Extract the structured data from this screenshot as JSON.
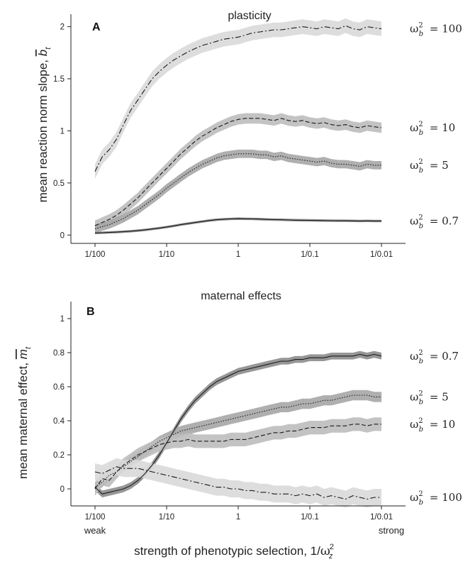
{
  "figure": {
    "x_ticks": [
      "1/100",
      "1/10",
      "1",
      "1/0.1",
      "1/0.01"
    ],
    "x_end_labels": {
      "left": "weak",
      "right": "strong"
    },
    "x_label": {
      "prefix": "strength of phenotypic selection,  1/",
      "sym": "ω",
      "sup": "2",
      "sub": "z"
    }
  },
  "chart_data": [
    {
      "panel": "A",
      "title": "plasticity",
      "type": "line",
      "x_scale": "log",
      "x_ticks": [
        "1/100",
        "1/10",
        "1",
        "1/0.1",
        "1/0.01"
      ],
      "xlim": [
        0.01,
        100
      ],
      "ylim": [
        -0.08,
        2.12
      ],
      "y_ticks": [
        "0",
        "0.5",
        "1",
        "1.5",
        "2"
      ],
      "ylabel": {
        "prefix": "mean reaction norm slope, ",
        "sym": "b",
        "sub": "t"
      },
      "series_label_prefix": {
        "sym": "ω",
        "sup": "2",
        "sub": "b"
      },
      "series": [
        {
          "name": "100",
          "label": "= 100",
          "linestyle": "dashdot",
          "band_color": "#d9d9d9",
          "x": [
            0.01,
            0.0126,
            0.0158,
            0.02,
            0.025,
            0.0316,
            0.04,
            0.05,
            0.063,
            0.079,
            0.1,
            0.126,
            0.158,
            0.2,
            0.25,
            0.316,
            0.4,
            0.5,
            0.63,
            0.79,
            1,
            1.26,
            1.58,
            2,
            2.5,
            3.16,
            4,
            5,
            6.3,
            7.9,
            10,
            12.6,
            15.8,
            20,
            25,
            31.6,
            40,
            50,
            63,
            79,
            100
          ],
          "y": [
            0.61,
            0.75,
            0.82,
            0.92,
            1.06,
            1.2,
            1.3,
            1.4,
            1.5,
            1.57,
            1.63,
            1.68,
            1.72,
            1.76,
            1.79,
            1.82,
            1.84,
            1.86,
            1.88,
            1.89,
            1.9,
            1.92,
            1.94,
            1.95,
            1.96,
            1.97,
            1.97,
            1.98,
            1.99,
            2.0,
            1.99,
            1.98,
            2.0,
            1.99,
            1.98,
            2.01,
            1.98,
            1.97,
            2.0,
            1.99,
            1.98
          ],
          "band": 0.07
        },
        {
          "name": "10",
          "label": "= 10",
          "linestyle": "dashed",
          "band_color": "#bdbdbd",
          "x": [
            0.01,
            0.0126,
            0.0158,
            0.02,
            0.025,
            0.0316,
            0.04,
            0.05,
            0.063,
            0.079,
            0.1,
            0.126,
            0.158,
            0.2,
            0.25,
            0.316,
            0.4,
            0.5,
            0.63,
            0.79,
            1,
            1.26,
            1.58,
            2,
            2.5,
            3.16,
            4,
            5,
            6.3,
            7.9,
            10,
            12.6,
            15.8,
            20,
            25,
            31.6,
            40,
            50,
            63,
            79,
            100
          ],
          "y": [
            0.09,
            0.12,
            0.15,
            0.19,
            0.24,
            0.3,
            0.36,
            0.43,
            0.5,
            0.57,
            0.64,
            0.71,
            0.78,
            0.84,
            0.9,
            0.95,
            0.99,
            1.03,
            1.06,
            1.09,
            1.11,
            1.12,
            1.12,
            1.12,
            1.11,
            1.1,
            1.12,
            1.1,
            1.09,
            1.1,
            1.08,
            1.07,
            1.08,
            1.06,
            1.05,
            1.06,
            1.04,
            1.03,
            1.05,
            1.04,
            1.03
          ],
          "band": 0.05
        },
        {
          "name": "5",
          "label": "= 5",
          "linestyle": "dotted",
          "band_color": "#a6a6a6",
          "x": [
            0.01,
            0.0126,
            0.0158,
            0.02,
            0.025,
            0.0316,
            0.04,
            0.05,
            0.063,
            0.079,
            0.1,
            0.126,
            0.158,
            0.2,
            0.25,
            0.316,
            0.4,
            0.5,
            0.63,
            0.79,
            1,
            1.26,
            1.58,
            2,
            2.5,
            3.16,
            4,
            5,
            6.3,
            7.9,
            10,
            12.6,
            15.8,
            20,
            25,
            31.6,
            40,
            50,
            63,
            79,
            100
          ],
          "y": [
            0.06,
            0.08,
            0.1,
            0.13,
            0.16,
            0.2,
            0.24,
            0.29,
            0.34,
            0.39,
            0.45,
            0.5,
            0.55,
            0.6,
            0.64,
            0.68,
            0.71,
            0.74,
            0.76,
            0.77,
            0.78,
            0.78,
            0.78,
            0.77,
            0.77,
            0.75,
            0.76,
            0.74,
            0.73,
            0.72,
            0.71,
            0.7,
            0.71,
            0.69,
            0.68,
            0.68,
            0.67,
            0.66,
            0.68,
            0.67,
            0.67
          ],
          "band": 0.04
        },
        {
          "name": "0.7",
          "label": "= 0.7",
          "linestyle": "solid",
          "band_color": "#8c8c8c",
          "x": [
            0.01,
            0.0126,
            0.0158,
            0.02,
            0.025,
            0.0316,
            0.04,
            0.05,
            0.063,
            0.079,
            0.1,
            0.126,
            0.158,
            0.2,
            0.25,
            0.316,
            0.4,
            0.5,
            0.63,
            0.79,
            1,
            1.26,
            1.58,
            2,
            2.5,
            3.16,
            4,
            5,
            6.3,
            7.9,
            10,
            12.6,
            15.8,
            20,
            25,
            31.6,
            40,
            50,
            63,
            79,
            100
          ],
          "y": [
            0.02,
            0.022,
            0.025,
            0.028,
            0.032,
            0.037,
            0.043,
            0.05,
            0.058,
            0.067,
            0.077,
            0.088,
            0.1,
            0.11,
            0.12,
            0.13,
            0.14,
            0.147,
            0.152,
            0.155,
            0.157,
            0.156,
            0.155,
            0.153,
            0.15,
            0.148,
            0.147,
            0.145,
            0.143,
            0.142,
            0.141,
            0.14,
            0.139,
            0.138,
            0.137,
            0.137,
            0.136,
            0.135,
            0.136,
            0.135,
            0.135
          ],
          "band": 0.012
        }
      ]
    },
    {
      "panel": "B",
      "title": "maternal effects",
      "type": "line",
      "x_scale": "log",
      "x_ticks": [
        "1/100",
        "1/10",
        "1",
        "1/0.1",
        "1/0.01"
      ],
      "xlim": [
        0.01,
        100
      ],
      "ylim": [
        -0.1,
        1.1
      ],
      "y_ticks": [
        "0",
        "0.2",
        "0.4",
        "0.6",
        "0.8",
        "1"
      ],
      "ylabel": {
        "prefix": "mean maternal effect, ",
        "sym": "m",
        "sub": "t"
      },
      "series_label_prefix": {
        "sym": "ω",
        "sup": "2",
        "sub": "b"
      },
      "series": [
        {
          "name": "0.7",
          "label": "= 0.7",
          "linestyle": "solid",
          "band_color": "#8c8c8c",
          "x": [
            0.01,
            0.0126,
            0.0158,
            0.02,
            0.025,
            0.0316,
            0.04,
            0.05,
            0.063,
            0.079,
            0.1,
            0.126,
            0.158,
            0.2,
            0.25,
            0.316,
            0.4,
            0.5,
            0.63,
            0.79,
            1,
            1.26,
            1.58,
            2,
            2.5,
            3.16,
            4,
            5,
            6.3,
            7.9,
            10,
            12.6,
            15.8,
            20,
            25,
            31.6,
            40,
            50,
            63,
            79,
            100
          ],
          "y": [
            0.01,
            -0.03,
            -0.02,
            -0.01,
            0.0,
            0.02,
            0.05,
            0.09,
            0.14,
            0.2,
            0.27,
            0.34,
            0.41,
            0.47,
            0.52,
            0.56,
            0.6,
            0.63,
            0.65,
            0.67,
            0.69,
            0.7,
            0.71,
            0.72,
            0.73,
            0.74,
            0.75,
            0.75,
            0.76,
            0.76,
            0.77,
            0.77,
            0.77,
            0.78,
            0.78,
            0.78,
            0.78,
            0.79,
            0.78,
            0.79,
            0.78
          ],
          "band": 0.02
        },
        {
          "name": "5",
          "label": "= 5",
          "linestyle": "dotted",
          "band_color": "#a6a6a6",
          "x": [
            0.01,
            0.0126,
            0.0158,
            0.02,
            0.025,
            0.0316,
            0.04,
            0.05,
            0.063,
            0.079,
            0.1,
            0.126,
            0.158,
            0.2,
            0.25,
            0.316,
            0.4,
            0.5,
            0.63,
            0.79,
            1,
            1.26,
            1.58,
            2,
            2.5,
            3.16,
            4,
            5,
            6.3,
            7.9,
            10,
            12.6,
            15.8,
            20,
            25,
            31.6,
            40,
            50,
            63,
            79,
            100
          ],
          "y": [
            0.01,
            0.04,
            0.08,
            0.1,
            0.13,
            0.16,
            0.19,
            0.22,
            0.25,
            0.28,
            0.3,
            0.32,
            0.34,
            0.35,
            0.36,
            0.37,
            0.38,
            0.39,
            0.4,
            0.41,
            0.42,
            0.43,
            0.44,
            0.45,
            0.46,
            0.47,
            0.48,
            0.48,
            0.49,
            0.5,
            0.5,
            0.51,
            0.52,
            0.52,
            0.53,
            0.54,
            0.55,
            0.55,
            0.55,
            0.54,
            0.54
          ],
          "band": 0.03
        },
        {
          "name": "10",
          "label": "= 10",
          "linestyle": "dashed",
          "band_color": "#bdbdbd",
          "x": [
            0.01,
            0.0126,
            0.0158,
            0.02,
            0.025,
            0.0316,
            0.04,
            0.05,
            0.063,
            0.079,
            0.1,
            0.126,
            0.158,
            0.2,
            0.25,
            0.316,
            0.4,
            0.5,
            0.63,
            0.79,
            1,
            1.26,
            1.58,
            2,
            2.5,
            3.16,
            4,
            5,
            6.3,
            7.9,
            10,
            12.6,
            15.8,
            20,
            25,
            31.6,
            40,
            50,
            63,
            79,
            100
          ],
          "y": [
            0.0,
            0.06,
            0.05,
            0.1,
            0.14,
            0.17,
            0.2,
            0.22,
            0.24,
            0.26,
            0.27,
            0.28,
            0.28,
            0.29,
            0.28,
            0.28,
            0.28,
            0.28,
            0.28,
            0.29,
            0.29,
            0.29,
            0.3,
            0.31,
            0.32,
            0.33,
            0.33,
            0.34,
            0.34,
            0.35,
            0.36,
            0.36,
            0.36,
            0.37,
            0.37,
            0.37,
            0.38,
            0.38,
            0.37,
            0.38,
            0.38
          ],
          "band": 0.04
        },
        {
          "name": "100",
          "label": "= 100",
          "linestyle": "dashdot",
          "band_color": "#d9d9d9",
          "x": [
            0.01,
            0.0126,
            0.0158,
            0.02,
            0.025,
            0.0316,
            0.04,
            0.05,
            0.063,
            0.079,
            0.1,
            0.126,
            0.158,
            0.2,
            0.25,
            0.316,
            0.4,
            0.5,
            0.63,
            0.79,
            1,
            1.26,
            1.58,
            2,
            2.5,
            3.16,
            4,
            5,
            6.3,
            7.9,
            10,
            12.6,
            15.8,
            20,
            25,
            31.6,
            40,
            50,
            63,
            79,
            100
          ],
          "y": [
            0.1,
            0.09,
            0.11,
            0.13,
            0.12,
            0.12,
            0.12,
            0.11,
            0.1,
            0.09,
            0.08,
            0.07,
            0.06,
            0.05,
            0.04,
            0.03,
            0.02,
            0.01,
            0.01,
            0.0,
            0.0,
            -0.01,
            -0.01,
            -0.02,
            -0.02,
            -0.03,
            -0.03,
            -0.03,
            -0.04,
            -0.03,
            -0.04,
            -0.03,
            -0.05,
            -0.04,
            -0.05,
            -0.06,
            -0.04,
            -0.05,
            -0.06,
            -0.05,
            -0.05
          ],
          "band": 0.05
        }
      ]
    }
  ]
}
